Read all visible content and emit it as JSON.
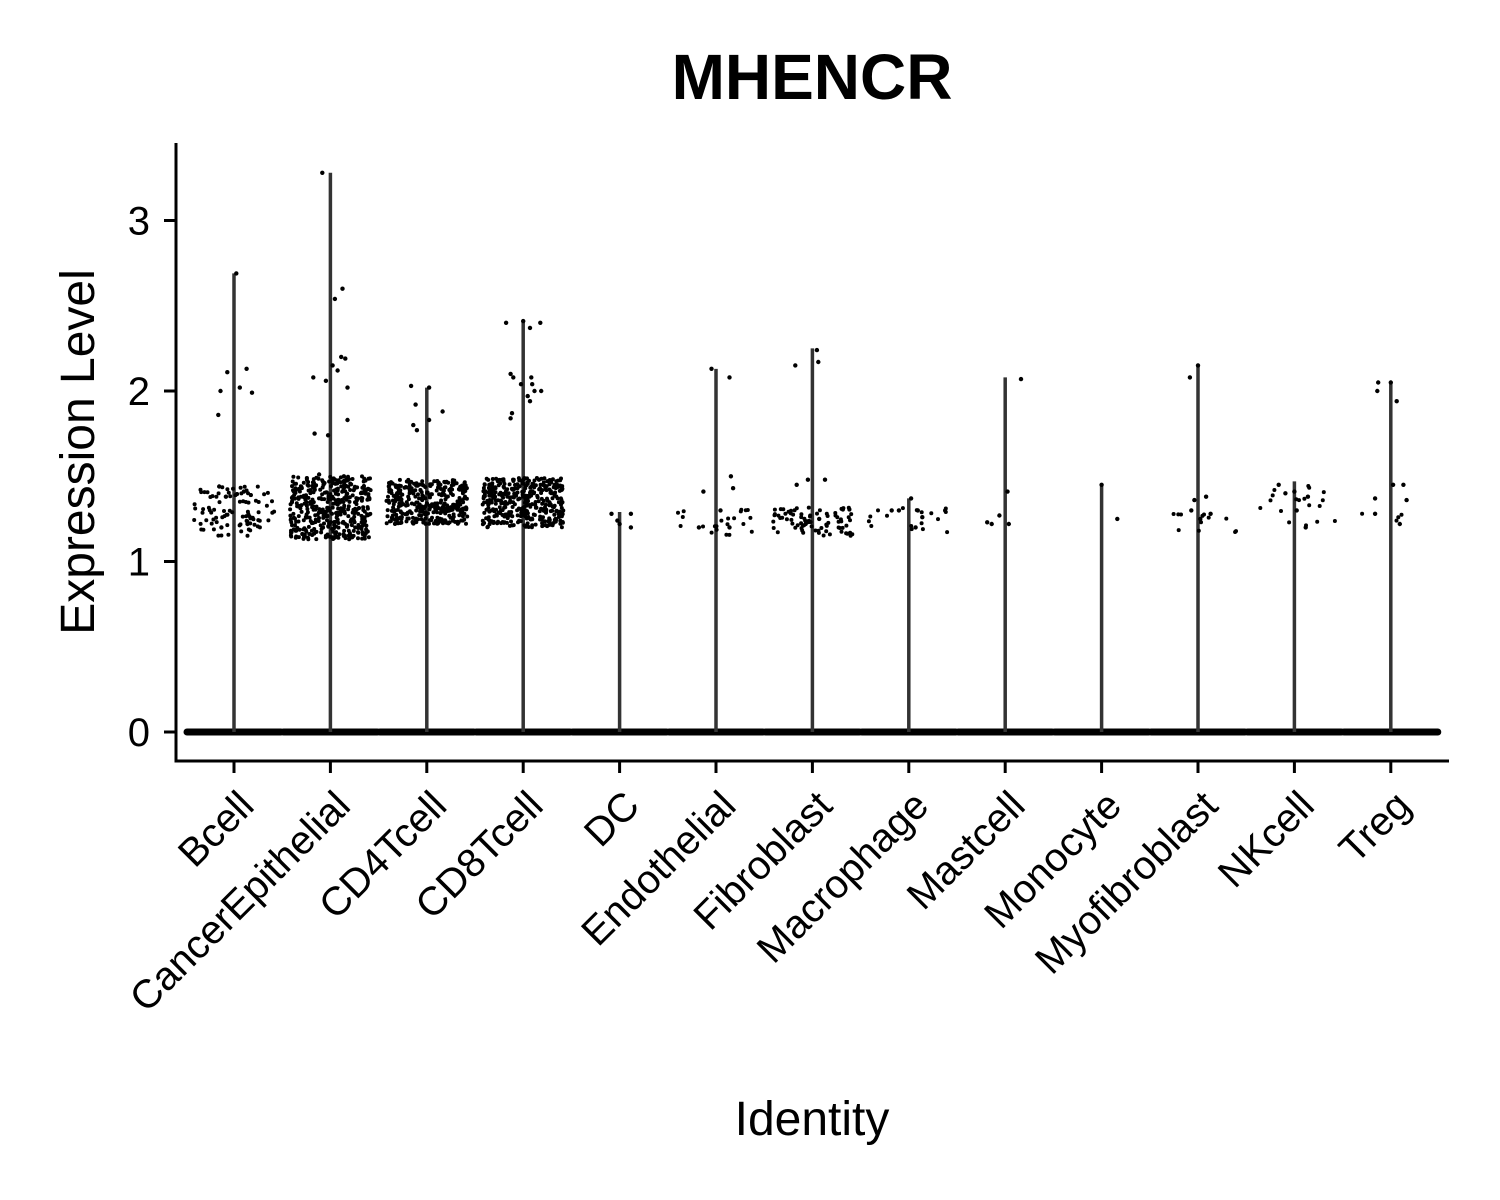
{
  "chart_data": {
    "type": "scatter",
    "title": "MHENCR",
    "xlabel": "Identity",
    "ylabel": "Expression Level",
    "ylim": [
      -0.16,
      3.46
    ],
    "yticks": [
      0,
      1,
      2,
      3
    ],
    "grid": false,
    "categories": [
      "Bcell",
      "CancerEpithelial",
      "CD4Tcell",
      "CD8Tcell",
      "DC",
      "Endothelial",
      "Fibroblast",
      "Macrophage",
      "Mastcell",
      "Monocyte",
      "Myofibroblast",
      "NKcell",
      "Treg"
    ],
    "series": [
      {
        "max": [
          2.69,
          3.28,
          2.02,
          2.41,
          1.29,
          2.13,
          2.25,
          1.37,
          2.08,
          1.45,
          2.15,
          1.47,
          2.05
        ],
        "points": [
          [
            [
              -0.35,
              1.86
            ],
            [
              -0.3,
              2.0
            ],
            [
              -0.15,
              2.11
            ],
            [
              0.05,
              2.69
            ],
            [
              0.13,
              2.02
            ],
            [
              0.28,
              2.13
            ],
            [
              0.4,
              1.99
            ],
            [
              -0.33,
              1.44
            ],
            [
              -0.18,
              1.38
            ],
            [
              0.22,
              1.41
            ],
            [
              0.3,
              1.22
            ],
            [
              -0.28,
              1.2
            ]
          ],
          [
            [
              -0.38,
              2.08
            ],
            [
              -0.18,
              3.28
            ],
            [
              -0.1,
              2.06
            ],
            [
              0.05,
              2.15
            ],
            [
              0.1,
              2.54
            ],
            [
              0.16,
              2.12
            ],
            [
              0.27,
              2.6
            ],
            [
              0.24,
              2.2
            ],
            [
              0.33,
              2.19
            ],
            [
              0.38,
              2.02
            ],
            [
              -0.35,
              1.75
            ],
            [
              -0.05,
              1.74
            ],
            [
              0.38,
              1.83
            ],
            [
              0.3,
              1.5
            ],
            [
              -0.25,
              1.51
            ],
            [
              0.1,
              1.48
            ]
          ],
          [
            [
              -0.35,
              2.03
            ],
            [
              -0.25,
              1.92
            ],
            [
              -0.3,
              1.8
            ],
            [
              -0.22,
              1.77
            ],
            [
              0.05,
              2.02
            ],
            [
              0.35,
              1.88
            ],
            [
              0.05,
              1.83
            ],
            [
              0.3,
              1.45
            ],
            [
              -0.3,
              1.4
            ],
            [
              0.2,
              1.3
            ]
          ],
          [
            [
              -0.38,
              2.4
            ],
            [
              -0.28,
              2.1
            ],
            [
              -0.22,
              2.08
            ],
            [
              -0.25,
              1.87
            ],
            [
              -0.28,
              1.84
            ],
            [
              0.0,
              2.41
            ],
            [
              -0.05,
              2.04
            ],
            [
              0.15,
              2.37
            ],
            [
              0.18,
              2.08
            ],
            [
              0.2,
              2.04
            ],
            [
              0.25,
              2.0
            ],
            [
              0.1,
              1.97
            ],
            [
              0.38,
              2.4
            ],
            [
              0.4,
              2.0
            ],
            [
              0.15,
              1.94
            ],
            [
              0.35,
              1.48
            ]
          ],
          [
            [
              -0.18,
              1.28
            ],
            [
              -0.05,
              1.24
            ],
            [
              0.0,
              1.22
            ],
            [
              0.25,
              1.28
            ],
            [
              0.25,
              1.2
            ]
          ],
          [
            [
              -0.38,
              1.2
            ],
            [
              -0.28,
              1.41
            ],
            [
              -0.1,
              2.13
            ],
            [
              0.3,
              2.08
            ],
            [
              0.33,
              1.5
            ],
            [
              0.38,
              1.43
            ],
            [
              0.1,
              1.3
            ],
            [
              0.3,
              1.2
            ]
          ],
          [
            [
              -0.38,
              2.15
            ],
            [
              -0.35,
              1.45
            ],
            [
              -0.1,
              1.48
            ],
            [
              0.1,
              2.24
            ],
            [
              0.13,
              2.17
            ],
            [
              0.28,
              1.48
            ],
            [
              0.15,
              1.25
            ],
            [
              -0.15,
              1.22
            ]
          ],
          [
            [
              -0.38,
              1.3
            ],
            [
              -0.22,
              1.3
            ],
            [
              0.05,
              1.37
            ],
            [
              0.2,
              1.3
            ],
            [
              0.3,
              1.26
            ],
            [
              0.15,
              1.2
            ]
          ],
          [
            [
              -0.4,
              1.23
            ],
            [
              -0.3,
              1.22
            ],
            [
              -0.13,
              1.27
            ],
            [
              0.05,
              1.41
            ],
            [
              0.08,
              1.22
            ],
            [
              0.35,
              2.07
            ]
          ],
          [
            [
              0.0,
              1.45
            ],
            [
              0.35,
              1.25
            ]
          ],
          [
            [
              -0.18,
              2.08
            ],
            [
              0.0,
              2.15
            ],
            [
              -0.15,
              1.3
            ],
            [
              0.18,
              1.38
            ],
            [
              0.28,
              1.28
            ],
            [
              -0.08,
              1.36
            ],
            [
              0.05,
              1.25
            ]
          ],
          [
            [
              -0.35,
              1.45
            ],
            [
              -0.2,
              1.4
            ],
            [
              0.0,
              1.41
            ],
            [
              0.3,
              1.38
            ],
            [
              0.05,
              1.3
            ],
            [
              0.25,
              1.2
            ]
          ],
          [
            [
              -0.35,
              1.37
            ],
            [
              -0.35,
              1.28
            ],
            [
              -0.3,
              2.0
            ],
            [
              -0.28,
              2.05
            ],
            [
              0.0,
              2.05
            ],
            [
              0.05,
              1.45
            ],
            [
              0.13,
              1.94
            ],
            [
              0.28,
              1.45
            ],
            [
              0.35,
              1.36
            ],
            [
              0.2,
              1.22
            ]
          ]
        ],
        "cluster": [
          {
            "n": 90,
            "lo": 1.15,
            "hi": 1.44
          },
          {
            "n": 420,
            "lo": 1.13,
            "hi": 1.5
          },
          {
            "n": 360,
            "lo": 1.22,
            "hi": 1.48
          },
          {
            "n": 380,
            "lo": 1.2,
            "hi": 1.49
          },
          {
            "n": 0,
            "lo": 1.18,
            "hi": 1.28
          },
          {
            "n": 22,
            "lo": 1.14,
            "hi": 1.32
          },
          {
            "n": 80,
            "lo": 1.15,
            "hi": 1.32
          },
          {
            "n": 18,
            "lo": 1.17,
            "hi": 1.32
          },
          {
            "n": 0,
            "lo": 1.2,
            "hi": 1.3
          },
          {
            "n": 0,
            "lo": 1.2,
            "hi": 1.3
          },
          {
            "n": 12,
            "lo": 1.16,
            "hi": 1.28
          },
          {
            "n": 18,
            "lo": 1.2,
            "hi": 1.45
          },
          {
            "n": 4,
            "lo": 1.22,
            "hi": 1.3
          }
        ]
      }
    ]
  }
}
